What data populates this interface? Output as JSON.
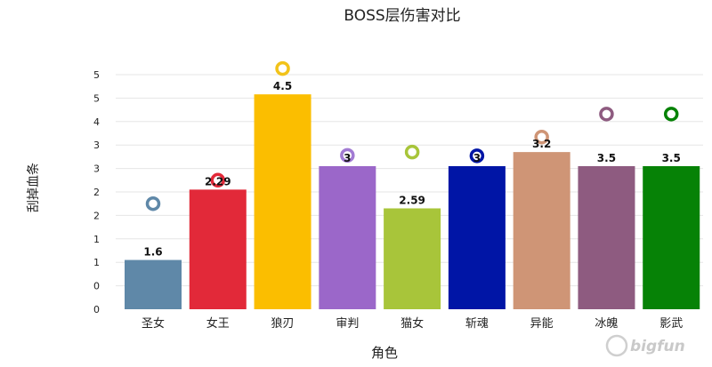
{
  "chart_data": {
    "type": "bar",
    "title": "BOSS层伤害对比",
    "xlabel": "角色",
    "ylabel": "刮掉血条",
    "y_tick_labels": [
      "0",
      "0",
      "1",
      "1",
      "2",
      "2",
      "3",
      "3",
      "4",
      "5",
      "5"
    ],
    "ylim": [
      0,
      5
    ],
    "grid": true,
    "categories": [
      "圣女",
      "女王",
      "狼刃",
      "审判",
      "猫女",
      "斩魂",
      "异能",
      "冰魄",
      "影武"
    ],
    "values": [
      1.6,
      2.29,
      4.5,
      3,
      2.59,
      3,
      3.2,
      3.5,
      3.5
    ],
    "value_labels": [
      "1.6",
      "2.29",
      "4.5",
      "3",
      "2.59",
      "3",
      "3.2",
      "3.5",
      "3.5"
    ],
    "bar_heights": [
      1.05,
      2.55,
      4.58,
      3.05,
      2.15,
      3.05,
      3.35,
      3.05,
      3.05
    ],
    "marker_levels": [
      2.25,
      2.75,
      5.13,
      3.28,
      3.35,
      3.27,
      3.67,
      4.16,
      4.16
    ],
    "colors": [
      "#5f88a8",
      "#e22939",
      "#fbbe00",
      "#9b67c9",
      "#a8c53a",
      "#0015a6",
      "#cf9576",
      "#8e5b80",
      "#068206"
    ],
    "marker_colors": [
      "#5f88a8",
      "#e22939",
      "#f2c31a",
      "#a27bd3",
      "#a8c53a",
      "#0015a6",
      "#cf9576",
      "#8e5b80",
      "#068206"
    ]
  },
  "watermark": {
    "text": "bigfun"
  }
}
